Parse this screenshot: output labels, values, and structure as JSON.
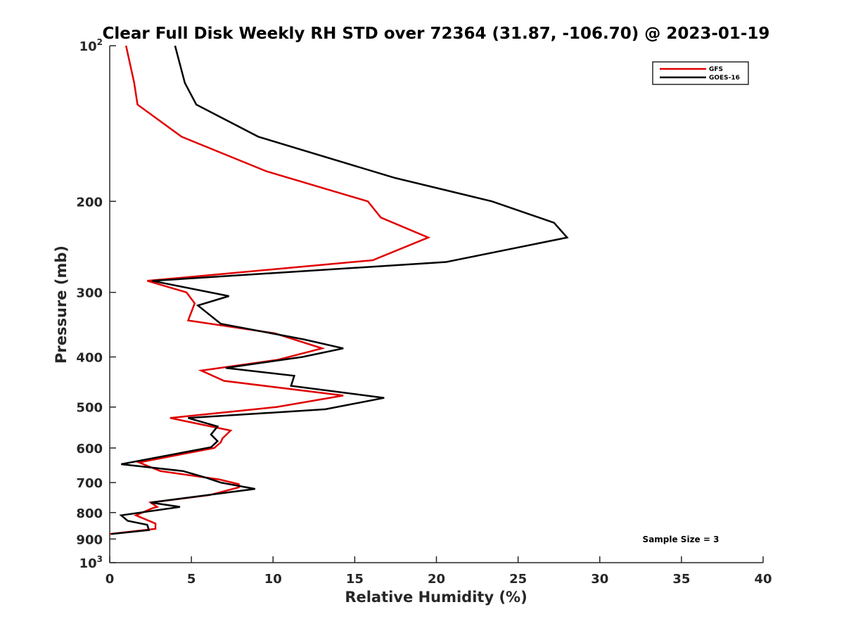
{
  "chart_data": {
    "type": "line",
    "title": "Clear Full Disk Weekly RH STD over 72364 (31.87, -106.70) @ 2023-01-19",
    "xlabel": "Relative Humidity (%)",
    "ylabel": "Pressure (mb)",
    "xlim": [
      0,
      40
    ],
    "ylim": [
      100,
      1000
    ],
    "y_scale": "log",
    "y_reversed": true,
    "x_ticks": [
      0,
      5,
      10,
      15,
      20,
      25,
      30,
      35,
      40
    ],
    "x_tick_labels": [
      "0",
      "5",
      "10",
      "15",
      "20",
      "25",
      "30",
      "35",
      "40"
    ],
    "y_ticks": [
      100,
      200,
      300,
      400,
      500,
      600,
      700,
      800,
      900,
      1000
    ],
    "y_tick_labels": [
      {
        "base": "10",
        "sup": "2"
      },
      {
        "base": "200",
        "sup": ""
      },
      {
        "base": "300",
        "sup": ""
      },
      {
        "base": "400",
        "sup": ""
      },
      {
        "base": "500",
        "sup": ""
      },
      {
        "base": "600",
        "sup": ""
      },
      {
        "base": "700",
        "sup": ""
      },
      {
        "base": "800",
        "sup": ""
      },
      {
        "base": "900",
        "sup": ""
      },
      {
        "base": "10",
        "sup": "3"
      }
    ],
    "grid": false,
    "legend_position": "top-right",
    "annotation": "Sample Size = 3",
    "series": [
      {
        "name": "GFS",
        "color": "#e00000",
        "points": [
          [
            1.0,
            100
          ],
          [
            1.5,
            118
          ],
          [
            1.7,
            130
          ],
          [
            4.4,
            150
          ],
          [
            9.6,
            175
          ],
          [
            15.8,
            200
          ],
          [
            16.6,
            215
          ],
          [
            19.5,
            235
          ],
          [
            16.1,
            260
          ],
          [
            2.3,
            285
          ],
          [
            4.7,
            300
          ],
          [
            5.2,
            315
          ],
          [
            4.8,
            340
          ],
          [
            10.1,
            360
          ],
          [
            13.0,
            385
          ],
          [
            10.3,
            405
          ],
          [
            5.6,
            425
          ],
          [
            7.0,
            445
          ],
          [
            14.3,
            475
          ],
          [
            10.2,
            500
          ],
          [
            3.7,
            525
          ],
          [
            7.4,
            555
          ],
          [
            6.9,
            575
          ],
          [
            6.8,
            585
          ],
          [
            6.4,
            600
          ],
          [
            1.8,
            640
          ],
          [
            3.1,
            665
          ],
          [
            6.7,
            690
          ],
          [
            7.9,
            705
          ],
          [
            7.9,
            715
          ],
          [
            6.1,
            740
          ],
          [
            2.5,
            765
          ],
          [
            2.9,
            780
          ],
          [
            2.6,
            785
          ],
          [
            1.6,
            810
          ],
          [
            2.8,
            840
          ],
          [
            2.8,
            860
          ],
          [
            0.0,
            880
          ]
        ]
      },
      {
        "name": "GOES-16",
        "color": "#000000",
        "points": [
          [
            4.0,
            100
          ],
          [
            4.6,
            118
          ],
          [
            5.3,
            130
          ],
          [
            9.1,
            150
          ],
          [
            17.4,
            180
          ],
          [
            23.4,
            200
          ],
          [
            27.2,
            220
          ],
          [
            28.0,
            235
          ],
          [
            20.6,
            262
          ],
          [
            2.6,
            285
          ],
          [
            7.3,
            305
          ],
          [
            5.4,
            318
          ],
          [
            6.8,
            345
          ],
          [
            11.9,
            370
          ],
          [
            14.3,
            385
          ],
          [
            11.8,
            400
          ],
          [
            7.1,
            420
          ],
          [
            11.3,
            435
          ],
          [
            11.1,
            455
          ],
          [
            16.8,
            480
          ],
          [
            13.2,
            505
          ],
          [
            4.8,
            525
          ],
          [
            6.6,
            545
          ],
          [
            6.2,
            565
          ],
          [
            6.6,
            582
          ],
          [
            6.2,
            598
          ],
          [
            0.7,
            645
          ],
          [
            4.5,
            665
          ],
          [
            5.9,
            685
          ],
          [
            6.8,
            700
          ],
          [
            8.9,
            720
          ],
          [
            2.5,
            765
          ],
          [
            4.3,
            780
          ],
          [
            0.7,
            810
          ],
          [
            1.1,
            830
          ],
          [
            2.3,
            845
          ],
          [
            2.4,
            865
          ],
          [
            0.1,
            880
          ]
        ]
      }
    ]
  }
}
